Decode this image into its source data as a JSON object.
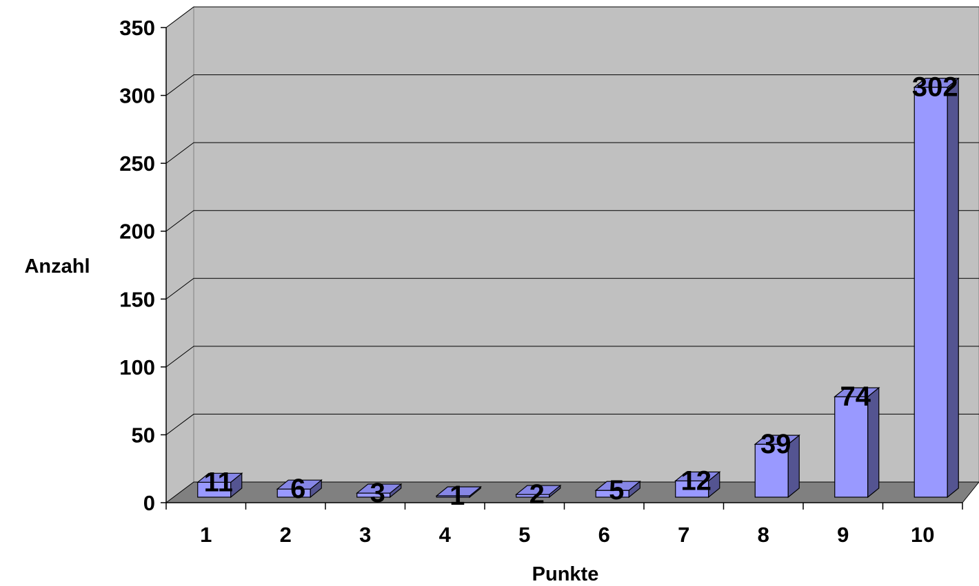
{
  "chart_data": {
    "type": "bar",
    "style": "3d-column",
    "categories": [
      "1",
      "2",
      "3",
      "4",
      "5",
      "6",
      "7",
      "8",
      "9",
      "10"
    ],
    "values": [
      11,
      6,
      3,
      1,
      2,
      5,
      12,
      39,
      74,
      302
    ],
    "title": "",
    "xlabel": "Punkte",
    "ylabel": "Anzahl",
    "ylim": [
      0,
      350
    ],
    "yticks": [
      "0",
      "50",
      "100",
      "150",
      "200",
      "250",
      "300",
      "350"
    ],
    "grid": true,
    "legend": "none",
    "data_labels": true
  },
  "colors": {
    "bar_front": "#9999ff",
    "bar_side": "#545491",
    "bar_top": "#8686e6",
    "wall": "#c0c0c0",
    "floor": "#808080",
    "gridline": "#000000"
  }
}
